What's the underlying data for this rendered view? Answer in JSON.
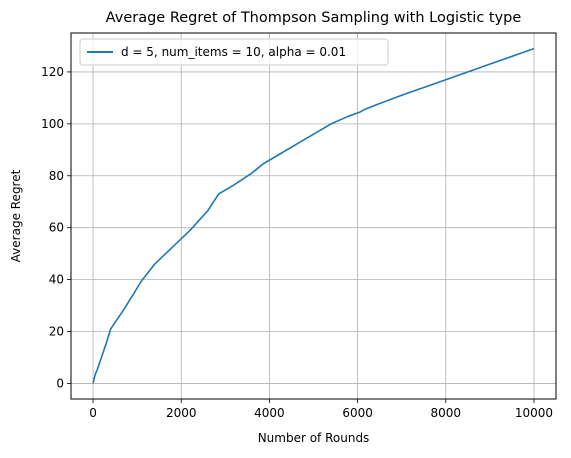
{
  "chart_data": {
    "type": "line",
    "title": "Average Regret of Thompson Sampling with Logistic type",
    "xlabel": "Number of Rounds",
    "ylabel": "Average Regret",
    "xlim": [
      -500,
      10500
    ],
    "ylim": [
      -6,
      135
    ],
    "xticks": [
      0,
      2000,
      4000,
      6000,
      8000,
      10000
    ],
    "xtick_labels": [
      "0",
      "2000",
      "4000",
      "6000",
      "8000",
      "10000"
    ],
    "yticks": [
      0,
      20,
      40,
      60,
      80,
      100,
      120
    ],
    "ytick_labels": [
      "0",
      "20",
      "40",
      "60",
      "80",
      "100",
      "120"
    ],
    "grid": true,
    "legend_position": "top-left",
    "series": [
      {
        "name": "d = 5, num_items = 10, alpha = 0.01",
        "color": "#1f77b4",
        "x": [
          0,
          50,
          100,
          200,
          300,
          400,
          500,
          700,
          900,
          1100,
          1400,
          1800,
          2200,
          2600,
          2850,
          3200,
          3600,
          3850,
          4200,
          4600,
          5000,
          5400,
          5800,
          6050,
          6150,
          6450,
          7000,
          8000,
          9000,
          10000
        ],
        "y": [
          0,
          3.5,
          5.5,
          10.5,
          15.5,
          21,
          23.5,
          28.5,
          34,
          39.5,
          46,
          52.5,
          59,
          66.5,
          73,
          76.5,
          81,
          84.5,
          88,
          92,
          96,
          100,
          103,
          104.5,
          105.5,
          107.5,
          111,
          117,
          123,
          129
        ]
      }
    ]
  }
}
